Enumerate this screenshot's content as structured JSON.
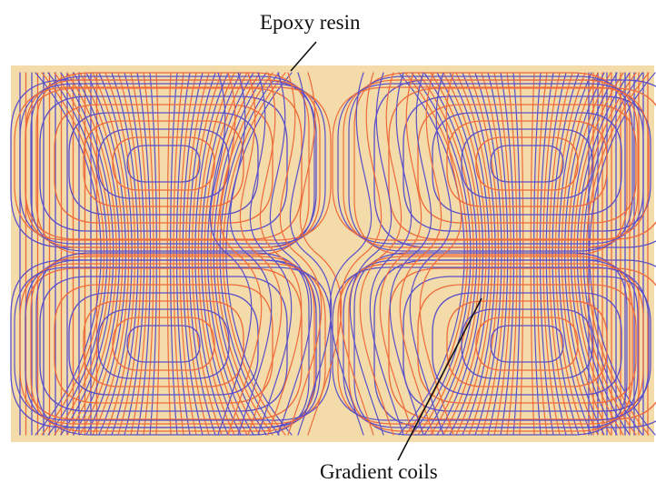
{
  "figure": {
    "labels": {
      "top": "Epoxy resin",
      "bottom": "Gradient coils"
    },
    "colors": {
      "resin": "#f3dcaa",
      "coil_blue": "#5a4fc8",
      "coil_orange": "#ef6a3a",
      "text": "#111111"
    }
  }
}
